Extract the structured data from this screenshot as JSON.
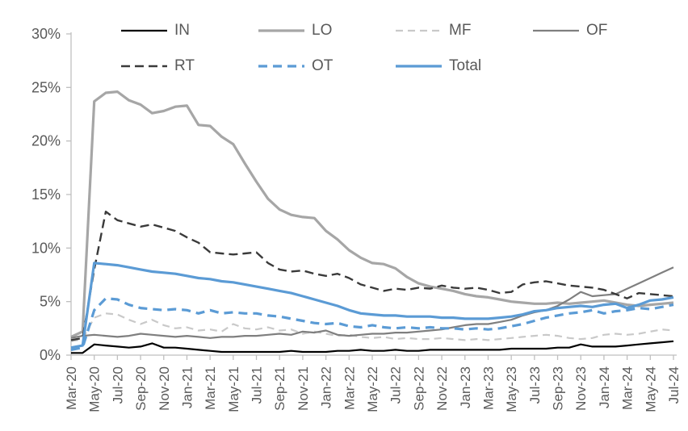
{
  "chart_data": {
    "type": "line",
    "title": "",
    "xlabel": "",
    "ylabel": "",
    "ylim": [
      0,
      30
    ],
    "ytick_step": 5,
    "ytick_values": [
      0,
      5,
      10,
      15,
      20,
      25,
      30
    ],
    "ytick_labels": [
      "0%",
      "5%",
      "10%",
      "15%",
      "20%",
      "25%",
      "30%"
    ],
    "grid": false,
    "legend_position": "top",
    "legend_rows": [
      [
        "IN",
        "LO",
        "MF",
        "OF"
      ],
      [
        "RT",
        "OT",
        "Total"
      ]
    ],
    "x_label_every": 2,
    "x_tick_labels_shown": [
      "Mar-20",
      "May-20",
      "Jul-20",
      "Sep-20",
      "Nov-20",
      "Jan-21",
      "Mar-21",
      "May-21",
      "Jul-21",
      "Sep-21",
      "Nov-21",
      "Jan-22",
      "Mar-22",
      "May-22",
      "Jul-22",
      "Sep-22",
      "Nov-22",
      "Jan-23",
      "Mar-23",
      "May-23",
      "Jul-23",
      "Sep-23",
      "Nov-23",
      "Jan-24",
      "Mar-24",
      "May-24",
      "Jul-24"
    ],
    "x": [
      "Mar-20",
      "Apr-20",
      "May-20",
      "Jun-20",
      "Jul-20",
      "Aug-20",
      "Sep-20",
      "Oct-20",
      "Nov-20",
      "Dec-20",
      "Jan-21",
      "Feb-21",
      "Mar-21",
      "Apr-21",
      "May-21",
      "Jun-21",
      "Jul-21",
      "Aug-21",
      "Sep-21",
      "Oct-21",
      "Nov-21",
      "Dec-21",
      "Jan-22",
      "Feb-22",
      "Mar-22",
      "Apr-22",
      "May-22",
      "Jun-22",
      "Jul-22",
      "Aug-22",
      "Sep-22",
      "Oct-22",
      "Nov-22",
      "Dec-22",
      "Jan-23",
      "Feb-23",
      "Mar-23",
      "Apr-23",
      "May-23",
      "Jun-23",
      "Jul-23",
      "Aug-23",
      "Sep-23",
      "Oct-23",
      "Nov-23",
      "Dec-23",
      "Jan-24",
      "Feb-24",
      "Mar-24",
      "Apr-24",
      "May-24",
      "Jun-24",
      "Jul-24"
    ],
    "series": [
      {
        "name": "IN",
        "color": "#000000",
        "dash": "solid",
        "width": 2.2,
        "values": [
          0.2,
          0.2,
          1.0,
          0.9,
          0.8,
          0.7,
          0.8,
          1.1,
          0.7,
          0.7,
          0.6,
          0.5,
          0.4,
          0.3,
          0.3,
          0.3,
          0.3,
          0.3,
          0.3,
          0.4,
          0.3,
          0.3,
          0.3,
          0.4,
          0.4,
          0.5,
          0.4,
          0.4,
          0.5,
          0.4,
          0.4,
          0.5,
          0.5,
          0.5,
          0.5,
          0.5,
          0.5,
          0.5,
          0.6,
          0.6,
          0.6,
          0.6,
          0.7,
          0.7,
          1.0,
          0.8,
          0.8,
          0.8,
          0.9,
          1.0,
          1.1,
          1.2,
          1.3
        ]
      },
      {
        "name": "LO",
        "color": "#A6A6A6",
        "dash": "solid",
        "width": 3.2,
        "values": [
          1.7,
          2.2,
          23.7,
          24.5,
          24.6,
          23.8,
          23.4,
          22.6,
          22.8,
          23.2,
          23.3,
          21.5,
          21.4,
          20.4,
          19.7,
          17.9,
          16.2,
          14.6,
          13.6,
          13.1,
          12.9,
          12.8,
          11.6,
          10.8,
          9.8,
          9.1,
          8.6,
          8.5,
          8.1,
          7.3,
          6.7,
          6.4,
          6.2,
          6.0,
          5.7,
          5.5,
          5.4,
          5.2,
          5.0,
          4.9,
          4.8,
          4.8,
          4.9,
          4.8,
          4.9,
          5.0,
          5.1,
          4.9,
          4.7,
          4.6,
          4.7,
          4.8,
          4.9
        ]
      },
      {
        "name": "MF",
        "color": "#C9C9C9",
        "dash": "dashed",
        "width": 2.2,
        "values": [
          1.3,
          1.5,
          3.5,
          3.9,
          3.8,
          3.3,
          2.9,
          3.3,
          2.8,
          2.5,
          2.6,
          2.3,
          2.4,
          2.2,
          2.9,
          2.5,
          2.4,
          2.6,
          2.3,
          2.4,
          2.0,
          2.2,
          2.0,
          1.8,
          1.9,
          1.7,
          1.6,
          1.7,
          1.5,
          1.6,
          1.5,
          1.5,
          1.6,
          1.5,
          1.4,
          1.5,
          1.4,
          1.5,
          1.6,
          1.7,
          1.8,
          1.9,
          1.8,
          1.6,
          1.5,
          1.6,
          1.9,
          2.0,
          1.9,
          2.0,
          2.2,
          2.4,
          2.3
        ]
      },
      {
        "name": "OF",
        "color": "#7F7F7F",
        "dash": "solid",
        "width": 2.2,
        "values": [
          1.6,
          1.8,
          1.9,
          1.8,
          1.7,
          1.8,
          2.0,
          1.9,
          1.8,
          1.7,
          1.8,
          1.7,
          1.6,
          1.7,
          1.7,
          1.8,
          1.8,
          1.9,
          2.0,
          1.9,
          2.2,
          2.1,
          2.3,
          1.9,
          1.8,
          1.9,
          2.0,
          2.0,
          2.1,
          2.1,
          2.2,
          2.3,
          2.4,
          2.6,
          2.8,
          2.9,
          2.9,
          3.1,
          3.3,
          3.7,
          4.0,
          4.2,
          4.6,
          5.2,
          5.9,
          5.5,
          5.6,
          5.7,
          6.2,
          6.7,
          7.2,
          7.7,
          8.2
        ]
      },
      {
        "name": "RT",
        "color": "#3A3A3A",
        "dash": "dashed",
        "width": 2.4,
        "values": [
          1.4,
          1.6,
          8.0,
          13.4,
          12.6,
          12.3,
          12.0,
          12.2,
          11.9,
          11.6,
          11.0,
          10.5,
          9.6,
          9.5,
          9.4,
          9.5,
          9.6,
          8.6,
          8.0,
          7.8,
          7.9,
          7.6,
          7.4,
          7.6,
          7.2,
          6.6,
          6.3,
          6.0,
          6.2,
          6.1,
          6.3,
          6.2,
          6.5,
          6.3,
          6.2,
          6.3,
          6.1,
          5.8,
          5.9,
          6.6,
          6.8,
          6.9,
          6.7,
          6.5,
          6.4,
          6.3,
          6.1,
          5.7,
          5.3,
          5.8,
          5.7,
          5.6,
          5.5
        ]
      },
      {
        "name": "OT",
        "color": "#5B9BD5",
        "dash": "dashed",
        "width": 3.2,
        "values": [
          0.5,
          0.7,
          4.2,
          5.3,
          5.2,
          4.7,
          4.4,
          4.3,
          4.2,
          4.3,
          4.2,
          3.9,
          4.2,
          3.9,
          4.0,
          3.9,
          3.9,
          3.7,
          3.6,
          3.4,
          3.2,
          3.0,
          2.9,
          3.0,
          2.7,
          2.6,
          2.8,
          2.6,
          2.5,
          2.6,
          2.5,
          2.6,
          2.5,
          2.5,
          2.4,
          2.5,
          2.4,
          2.5,
          2.7,
          2.9,
          3.2,
          3.5,
          3.7,
          3.9,
          4.0,
          4.2,
          3.9,
          4.1,
          4.2,
          4.4,
          4.3,
          4.5,
          4.7
        ]
      },
      {
        "name": "Total",
        "color": "#5B9BD5",
        "dash": "solid",
        "width": 3.2,
        "values": [
          0.7,
          0.9,
          8.6,
          8.5,
          8.4,
          8.2,
          8.0,
          7.8,
          7.7,
          7.6,
          7.4,
          7.2,
          7.1,
          6.9,
          6.8,
          6.6,
          6.4,
          6.2,
          6.0,
          5.8,
          5.5,
          5.2,
          4.9,
          4.6,
          4.2,
          3.9,
          3.8,
          3.7,
          3.7,
          3.6,
          3.6,
          3.6,
          3.5,
          3.5,
          3.4,
          3.4,
          3.4,
          3.5,
          3.6,
          3.8,
          4.1,
          4.2,
          4.4,
          4.5,
          4.6,
          4.5,
          4.7,
          4.8,
          4.4,
          4.7,
          5.1,
          5.2,
          5.4
        ]
      }
    ],
    "colors": {
      "axis": "#BFBFBF",
      "tick_label": "#595959",
      "legend_label": "#595959",
      "accent_blue": "#5B9BD5"
    }
  }
}
